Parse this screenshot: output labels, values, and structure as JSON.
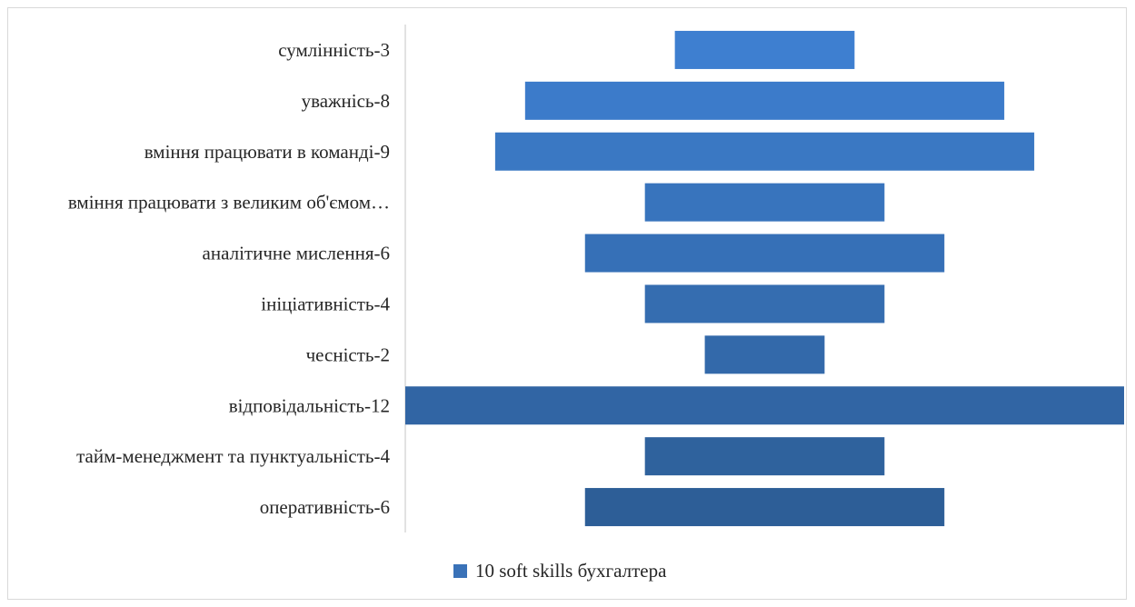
{
  "chart_data": {
    "type": "bar",
    "orientation": "horizontal",
    "style": "centered",
    "title": "",
    "xlabel": "",
    "ylabel": "",
    "xlim": [
      -12,
      12
    ],
    "categories": [
      "сумлінність-3",
      "уважнісь-8",
      "вміння працювати в команді-9",
      "вміння працювати з великим об'ємом…",
      "аналітичне мислення-6",
      "ініціативність-4",
      "чесність-2",
      "відповідальність-12",
      "тайм-менеджмент та пунктуальність-4",
      "оперативність-6"
    ],
    "series": [
      {
        "name": "10 soft skills бухгалтера",
        "values": [
          3,
          8,
          9,
          4,
          6,
          4,
          2,
          12,
          4,
          6
        ],
        "color_top": "#3e7fd0",
        "color_bottom": "#2d5e97"
      }
    ],
    "legend": {
      "position": "bottom",
      "label": "10 soft skills бухгалтера"
    },
    "gridlines": false
  }
}
